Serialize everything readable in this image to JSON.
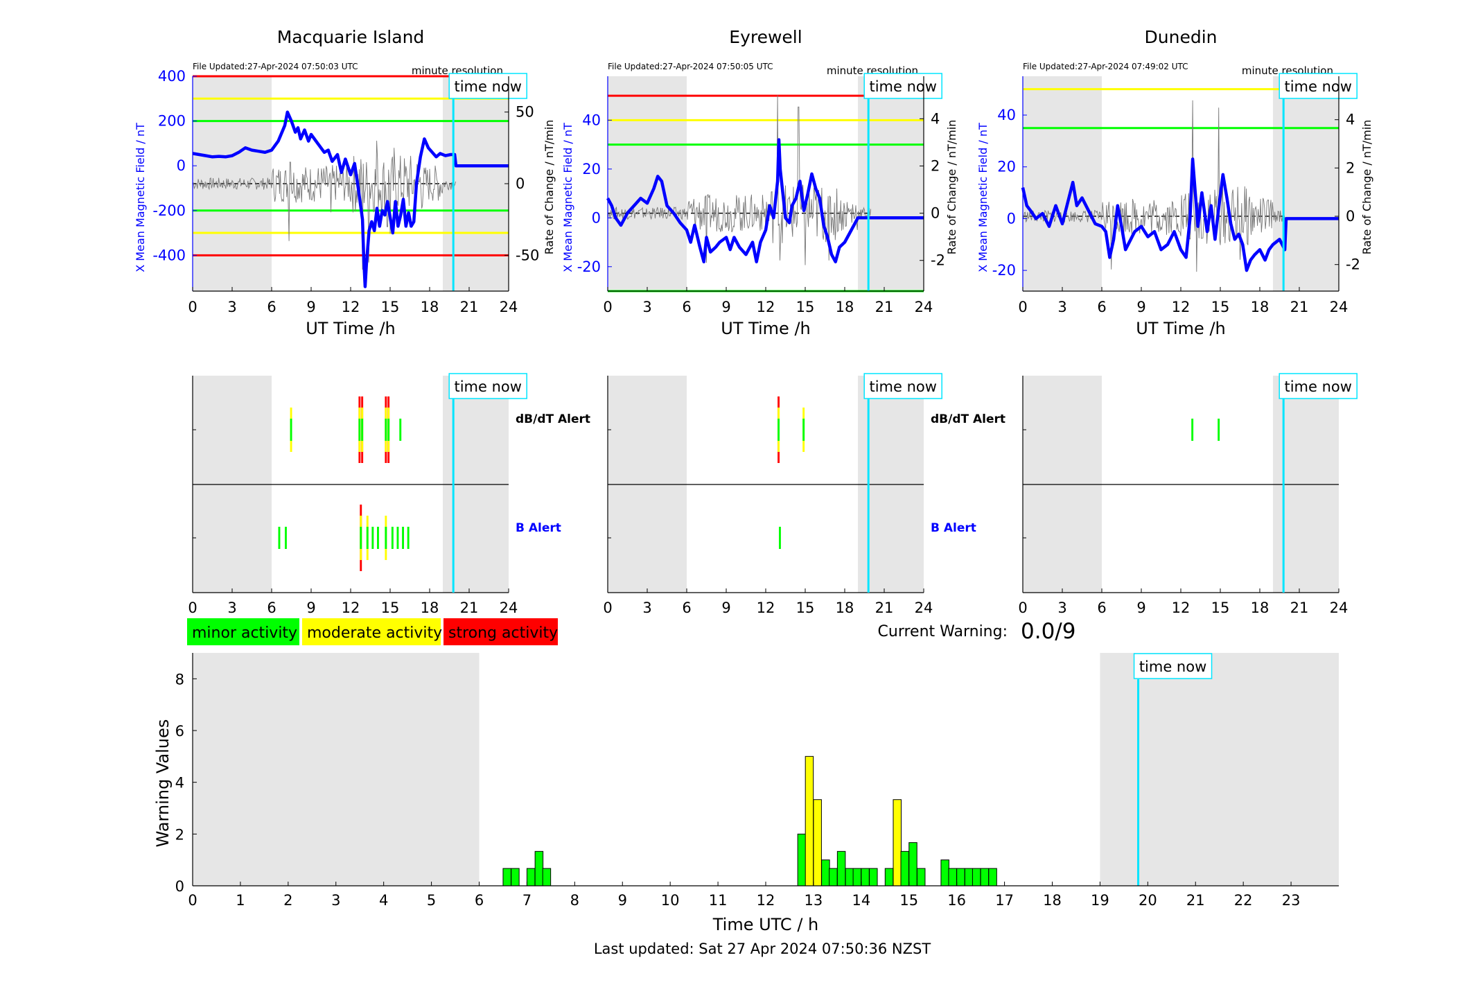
{
  "stations": [
    {
      "name": "Macquarie Island",
      "file_updated": "File Updated:27-Apr-2024 07:50:03 UTC",
      "resolution": "minute resolution",
      "y_left": {
        "min": -560,
        "max": 400,
        "ticks": [
          -400,
          -200,
          0,
          200,
          400
        ]
      },
      "y_right": {
        "min": -75,
        "max": 75,
        "ticks": [
          -50,
          0,
          50
        ]
      },
      "thresholds_left": [
        {
          "value": 400,
          "color": "#ff0000"
        },
        {
          "value": 300,
          "color": "#ffff00"
        },
        {
          "value": 200,
          "color": "#00ff00"
        },
        {
          "value": -200,
          "color": "#00ff00"
        },
        {
          "value": -300,
          "color": "#ffff00"
        },
        {
          "value": -400,
          "color": "#ff0000"
        }
      ],
      "x_mean_field": [
        [
          0,
          55
        ],
        [
          0.5,
          50
        ],
        [
          1,
          45
        ],
        [
          1.5,
          40
        ],
        [
          2,
          42
        ],
        [
          2.5,
          40
        ],
        [
          3,
          45
        ],
        [
          3.5,
          60
        ],
        [
          4,
          80
        ],
        [
          4.5,
          70
        ],
        [
          5,
          65
        ],
        [
          5.5,
          60
        ],
        [
          6,
          70
        ],
        [
          6.5,
          110
        ],
        [
          7,
          180
        ],
        [
          7.2,
          240
        ],
        [
          7.5,
          200
        ],
        [
          7.8,
          150
        ],
        [
          8,
          170
        ],
        [
          8.2,
          120
        ],
        [
          8.5,
          160
        ],
        [
          8.8,
          110
        ],
        [
          9,
          140
        ],
        [
          9.5,
          100
        ],
        [
          10,
          60
        ],
        [
          10.3,
          70
        ],
        [
          10.6,
          20
        ],
        [
          11,
          50
        ],
        [
          11.3,
          -30
        ],
        [
          11.6,
          30
        ],
        [
          12,
          -40
        ],
        [
          12.3,
          10
        ],
        [
          12.6,
          -110
        ],
        [
          12.9,
          -240
        ],
        [
          13.0,
          -420
        ],
        [
          13.1,
          -540
        ],
        [
          13.2,
          -440
        ],
        [
          13.4,
          -290
        ],
        [
          13.6,
          -250
        ],
        [
          13.8,
          -290
        ],
        [
          14,
          -190
        ],
        [
          14.2,
          -270
        ],
        [
          14.4,
          -200
        ],
        [
          14.6,
          -220
        ],
        [
          14.8,
          -160
        ],
        [
          15,
          -230
        ],
        [
          15.2,
          -300
        ],
        [
          15.4,
          -160
        ],
        [
          15.6,
          -270
        ],
        [
          15.8,
          -220
        ],
        [
          16,
          -150
        ],
        [
          16.2,
          -270
        ],
        [
          16.4,
          -210
        ],
        [
          16.6,
          -270
        ],
        [
          16.8,
          -250
        ],
        [
          17,
          -80
        ],
        [
          17.3,
          40
        ],
        [
          17.6,
          120
        ],
        [
          17.9,
          80
        ],
        [
          18.2,
          60
        ],
        [
          18.5,
          40
        ],
        [
          18.8,
          55
        ],
        [
          19.2,
          45
        ],
        [
          19.6,
          50
        ],
        [
          19.9,
          50
        ],
        [
          20.0,
          0
        ],
        [
          24,
          0
        ]
      ],
      "rate_of_change_peaks": [
        [
          7.3,
          -40
        ],
        [
          7.4,
          15
        ],
        [
          10.5,
          -20
        ],
        [
          12.9,
          -60
        ],
        [
          13.2,
          15
        ],
        [
          13.4,
          -55
        ],
        [
          14.0,
          30
        ],
        [
          14.8,
          -30
        ],
        [
          15.0,
          -35
        ],
        [
          15.3,
          25
        ]
      ],
      "db_dt_alerts": [
        {
          "t": 7.4,
          "levels": [
            "#ffff00",
            "#00ff00"
          ]
        },
        {
          "t": 12.6,
          "levels": [
            "#ff0000",
            "#ffff00",
            "#00ff00"
          ]
        },
        {
          "t": 12.8,
          "levels": [
            "#ff0000",
            "#ffff00",
            "#00ff00"
          ]
        },
        {
          "t": 14.6,
          "levels": [
            "#ff0000",
            "#ffff00",
            "#00ff00"
          ]
        },
        {
          "t": 14.8,
          "levels": [
            "#ff0000",
            "#ffff00",
            "#00ff00"
          ]
        },
        {
          "t": 15.7,
          "levels": [
            "#00ff00"
          ]
        }
      ],
      "b_alerts": [
        {
          "t": 6.5,
          "levels": [
            "#00ff00"
          ]
        },
        {
          "t": 7.0,
          "levels": [
            "#00ff00"
          ]
        },
        {
          "t": 12.7,
          "levels": [
            "#ff0000",
            "#ffff00",
            "#00ff00"
          ]
        },
        {
          "t": 13.2,
          "levels": [
            "#ffff00",
            "#00ff00"
          ]
        },
        {
          "t": 13.6,
          "levels": [
            "#00ff00"
          ]
        },
        {
          "t": 14.0,
          "levels": [
            "#00ff00"
          ]
        },
        {
          "t": 14.6,
          "levels": [
            "#ffff00",
            "#00ff00"
          ]
        },
        {
          "t": 15.1,
          "levels": [
            "#00ff00"
          ]
        },
        {
          "t": 15.5,
          "levels": [
            "#00ff00"
          ]
        },
        {
          "t": 15.9,
          "levels": [
            "#00ff00"
          ]
        },
        {
          "t": 16.3,
          "levels": [
            "#00ff00"
          ]
        }
      ]
    },
    {
      "name": "Eyrewell",
      "file_updated": "File Updated:27-Apr-2024 07:50:05 UTC",
      "resolution": "minute resolution",
      "y_left": {
        "min": -30,
        "max": 58,
        "ticks": [
          -20,
          0,
          20,
          40
        ]
      },
      "y_right": {
        "min": -3.3,
        "max": 5.8,
        "ticks": [
          -2,
          0,
          2,
          4
        ]
      },
      "thresholds_left": [
        {
          "value": 50,
          "color": "#ff0000"
        },
        {
          "value": 40,
          "color": "#ffff00"
        },
        {
          "value": 30,
          "color": "#00ff00"
        },
        {
          "value": -30,
          "color": "#00ff00"
        }
      ],
      "x_mean_field": [
        [
          0,
          8
        ],
        [
          0.3,
          5
        ],
        [
          0.6,
          0
        ],
        [
          1,
          -3
        ],
        [
          1.5,
          2
        ],
        [
          2,
          5
        ],
        [
          2.5,
          8
        ],
        [
          3,
          6
        ],
        [
          3.5,
          12
        ],
        [
          3.8,
          17
        ],
        [
          4.1,
          15
        ],
        [
          4.5,
          5
        ],
        [
          5,
          2
        ],
        [
          5.5,
          -2
        ],
        [
          6,
          -5
        ],
        [
          6.3,
          -10
        ],
        [
          6.6,
          -3
        ],
        [
          7,
          -12
        ],
        [
          7.3,
          -18
        ],
        [
          7.5,
          -8
        ],
        [
          7.8,
          -14
        ],
        [
          8.2,
          -12
        ],
        [
          8.5,
          -10
        ],
        [
          9,
          -8
        ],
        [
          9.3,
          -13
        ],
        [
          9.6,
          -8
        ],
        [
          10,
          -12
        ],
        [
          10.5,
          -15
        ],
        [
          11,
          -10
        ],
        [
          11.3,
          -18
        ],
        [
          11.6,
          -10
        ],
        [
          12,
          -5
        ],
        [
          12.3,
          5
        ],
        [
          12.6,
          0
        ],
        [
          12.9,
          15
        ],
        [
          13.0,
          32
        ],
        [
          13.1,
          20
        ],
        [
          13.3,
          10
        ],
        [
          13.5,
          0
        ],
        [
          13.8,
          -2
        ],
        [
          14,
          5
        ],
        [
          14.3,
          8
        ],
        [
          14.6,
          15
        ],
        [
          14.9,
          3
        ],
        [
          15.2,
          10
        ],
        [
          15.5,
          18
        ],
        [
          15.8,
          12
        ],
        [
          16.1,
          8
        ],
        [
          16.4,
          -3
        ],
        [
          16.7,
          -8
        ],
        [
          17,
          -15
        ],
        [
          17.3,
          -18
        ],
        [
          17.6,
          -12
        ],
        [
          18,
          -10
        ],
        [
          18.4,
          -6
        ],
        [
          18.7,
          -3
        ],
        [
          19,
          0
        ],
        [
          19.5,
          0
        ],
        [
          20,
          0
        ],
        [
          24,
          0
        ]
      ],
      "rate_of_change_peaks": [
        [
          12.9,
          5.0
        ],
        [
          13.1,
          -2
        ],
        [
          14.5,
          4.5
        ],
        [
          15.0,
          -2.2
        ],
        [
          7.5,
          -2.1
        ],
        [
          16.8,
          -2
        ]
      ],
      "db_dt_alerts": [
        {
          "t": 12.9,
          "levels": [
            "#ff0000",
            "#ffff00",
            "#00ff00"
          ]
        },
        {
          "t": 14.8,
          "levels": [
            "#ffff00",
            "#00ff00"
          ]
        }
      ],
      "b_alerts": [
        {
          "t": 13.0,
          "levels": [
            "#00ff00"
          ]
        }
      ]
    },
    {
      "name": "Dunedin",
      "file_updated": "File Updated:27-Apr-2024 07:49:02 UTC",
      "resolution": "minute resolution",
      "y_left": {
        "min": -28,
        "max": 55,
        "ticks": [
          -20,
          0,
          20,
          40
        ]
      },
      "y_right": {
        "min": -3.1,
        "max": 5.8,
        "ticks": [
          -2,
          0,
          2,
          4
        ]
      },
      "thresholds_left": [
        {
          "value": 50,
          "color": "#ffff00"
        },
        {
          "value": 35,
          "color": "#00ff00"
        }
      ],
      "x_mean_field": [
        [
          0,
          12
        ],
        [
          0.3,
          5
        ],
        [
          0.6,
          3
        ],
        [
          1,
          0
        ],
        [
          1.5,
          2
        ],
        [
          2,
          -3
        ],
        [
          2.5,
          5
        ],
        [
          3,
          -2
        ],
        [
          3.5,
          8
        ],
        [
          3.8,
          14
        ],
        [
          4.1,
          5
        ],
        [
          4.5,
          8
        ],
        [
          5,
          3
        ],
        [
          5.5,
          -2
        ],
        [
          6,
          -3
        ],
        [
          6.3,
          -5
        ],
        [
          6.6,
          -15
        ],
        [
          6.9,
          -8
        ],
        [
          7.2,
          5
        ],
        [
          7.5,
          -3
        ],
        [
          7.8,
          -12
        ],
        [
          8.2,
          -8
        ],
        [
          8.5,
          -5
        ],
        [
          9,
          -3
        ],
        [
          9.5,
          -7
        ],
        [
          10,
          -5
        ],
        [
          10.5,
          -12
        ],
        [
          11,
          -10
        ],
        [
          11.5,
          -5
        ],
        [
          12,
          -12
        ],
        [
          12.4,
          -15
        ],
        [
          12.7,
          0
        ],
        [
          12.9,
          23
        ],
        [
          13.1,
          10
        ],
        [
          13.3,
          -3
        ],
        [
          13.6,
          10
        ],
        [
          14,
          -5
        ],
        [
          14.3,
          5
        ],
        [
          14.6,
          -8
        ],
        [
          14.9,
          5
        ],
        [
          15.2,
          17
        ],
        [
          15.5,
          8
        ],
        [
          15.8,
          -2
        ],
        [
          16.1,
          -8
        ],
        [
          16.4,
          -6
        ],
        [
          16.7,
          -10
        ],
        [
          17,
          -20
        ],
        [
          17.3,
          -16
        ],
        [
          17.6,
          -14
        ],
        [
          18,
          -12
        ],
        [
          18.4,
          -16
        ],
        [
          18.7,
          -12
        ],
        [
          19,
          -10
        ],
        [
          19.5,
          -8
        ],
        [
          19.9,
          -12
        ],
        [
          20,
          0
        ],
        [
          24,
          0
        ]
      ],
      "rate_of_change_peaks": [
        [
          12.9,
          4.8
        ],
        [
          14.9,
          4.5
        ],
        [
          13.2,
          -2.3
        ],
        [
          6.7,
          -2.2
        ],
        [
          16.5,
          -1.8
        ]
      ],
      "db_dt_alerts": [
        {
          "t": 12.8,
          "levels": [
            "#00ff00"
          ]
        },
        {
          "t": 14.8,
          "levels": [
            "#00ff00"
          ]
        }
      ],
      "b_alerts": []
    }
  ],
  "common": {
    "x_ticks": [
      0,
      3,
      6,
      9,
      12,
      15,
      18,
      21,
      24
    ],
    "x_label": "UT Time /h",
    "left_axis_label": "X Mean Magnetic Field / nT",
    "right_axis_label": "Rate of Change / nT/min",
    "time_now_label": "time now",
    "time_now_hours": 19.8,
    "night_shading": [
      [
        0,
        6
      ],
      [
        19,
        24
      ]
    ],
    "dbdt_alert_label": "dB/dT Alert",
    "b_alert_label": "B Alert"
  },
  "legend": [
    {
      "label": "minor activity",
      "color": "#00ff00"
    },
    {
      "label": "moderate activity",
      "color": "#ffff00"
    },
    {
      "label": "strong activity",
      "color": "#ff0000"
    }
  ],
  "current_warning": {
    "label": "Current Warning:",
    "value": "0.0/9"
  },
  "chart_data": {
    "type": "bar",
    "xlabel": "Time UTC / h",
    "ylabel": "Warning Values",
    "xlim": [
      0,
      24
    ],
    "ylim": [
      0,
      9
    ],
    "x_ticks": [
      0,
      1,
      2,
      3,
      4,
      5,
      6,
      7,
      8,
      9,
      10,
      11,
      12,
      13,
      14,
      15,
      16,
      17,
      18,
      19,
      20,
      21,
      22,
      23
    ],
    "y_ticks": [
      0,
      2,
      4,
      6,
      8
    ],
    "bin_width_h": 0.1667,
    "bars": [
      {
        "x": 6.5,
        "value": 0.67,
        "level": "minor"
      },
      {
        "x": 6.67,
        "value": 0.67,
        "level": "minor"
      },
      {
        "x": 7.0,
        "value": 0.67,
        "level": "minor"
      },
      {
        "x": 7.17,
        "value": 1.33,
        "level": "minor"
      },
      {
        "x": 7.33,
        "value": 0.67,
        "level": "minor"
      },
      {
        "x": 12.67,
        "value": 2.0,
        "level": "minor"
      },
      {
        "x": 12.83,
        "value": 5.0,
        "level": "moderate"
      },
      {
        "x": 13.0,
        "value": 3.33,
        "level": "moderate"
      },
      {
        "x": 13.17,
        "value": 1.0,
        "level": "minor"
      },
      {
        "x": 13.33,
        "value": 0.67,
        "level": "minor"
      },
      {
        "x": 13.5,
        "value": 1.33,
        "level": "minor"
      },
      {
        "x": 13.67,
        "value": 0.67,
        "level": "minor"
      },
      {
        "x": 13.83,
        "value": 0.67,
        "level": "minor"
      },
      {
        "x": 14.0,
        "value": 0.67,
        "level": "minor"
      },
      {
        "x": 14.17,
        "value": 0.67,
        "level": "minor"
      },
      {
        "x": 14.5,
        "value": 0.67,
        "level": "minor"
      },
      {
        "x": 14.67,
        "value": 3.33,
        "level": "moderate"
      },
      {
        "x": 14.83,
        "value": 1.33,
        "level": "minor"
      },
      {
        "x": 15.0,
        "value": 1.67,
        "level": "minor"
      },
      {
        "x": 15.17,
        "value": 0.67,
        "level": "minor"
      },
      {
        "x": 15.67,
        "value": 1.0,
        "level": "minor"
      },
      {
        "x": 15.83,
        "value": 0.67,
        "level": "minor"
      },
      {
        "x": 16.0,
        "value": 0.67,
        "level": "minor"
      },
      {
        "x": 16.17,
        "value": 0.67,
        "level": "minor"
      },
      {
        "x": 16.33,
        "value": 0.67,
        "level": "minor"
      },
      {
        "x": 16.5,
        "value": 0.67,
        "level": "minor"
      },
      {
        "x": 16.67,
        "value": 0.67,
        "level": "minor"
      }
    ],
    "night_shading": [
      [
        0,
        6
      ],
      [
        19,
        24
      ]
    ],
    "time_now_hours": 19.8
  },
  "footer": "Last updated: Sat 27 Apr 2024 07:50:36 NZST"
}
